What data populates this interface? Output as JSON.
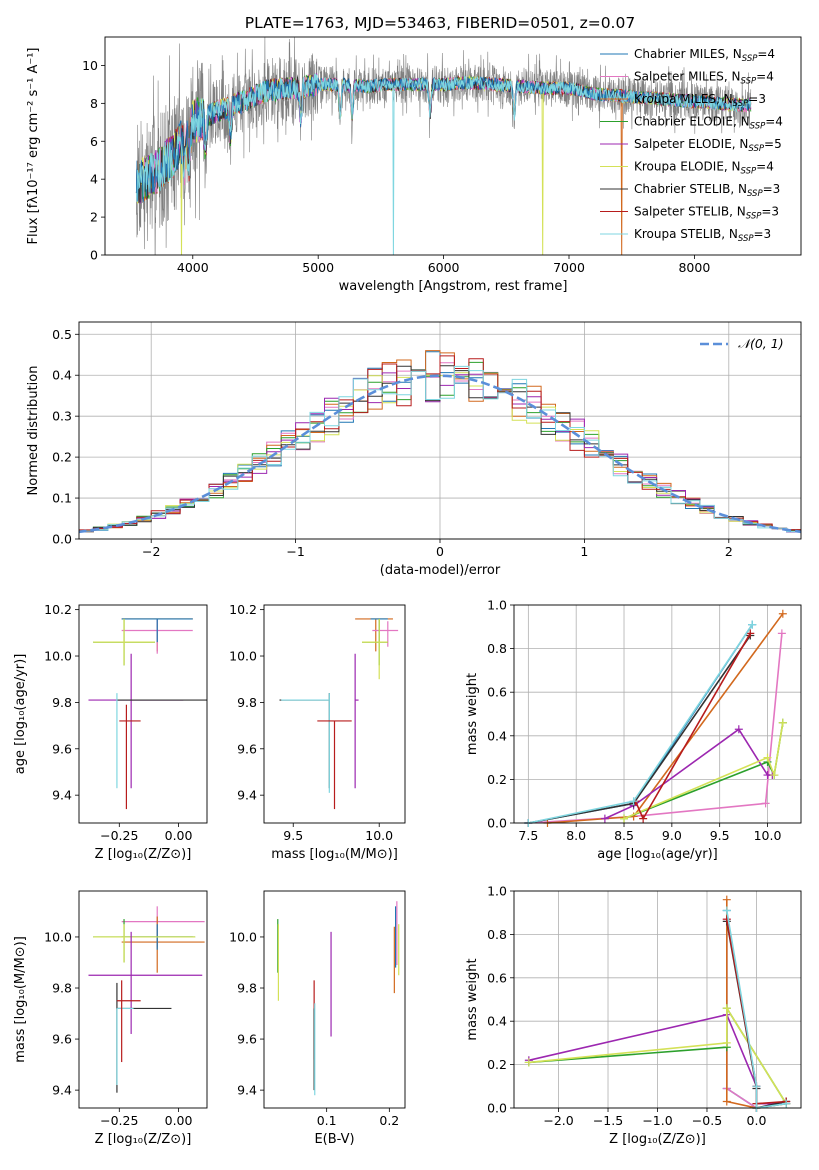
{
  "title": "PLATE=1763, MJD=53463, FIBERID=0501, z=0.07",
  "colors": {
    "Chabrier MILES": "#1f77b4",
    "Salpeter MILES": "#e377c2",
    "Kroupa MILES": "#d2691e",
    "Chabrier ELODIE": "#2ca02c",
    "Salpeter ELODIE": "#9c27b0",
    "Kroupa ELODIE": "#d4e157",
    "Chabrier STELIB": "#333333",
    "Salpeter STELIB": "#b71c1c",
    "Kroupa STELIB": "#7fd6e0",
    "data": "#808080",
    "gaussian": "#5b8fd9"
  },
  "legend_top": [
    "Chabrier MILES, N$_{SSP}$=4",
    "Salpeter MILES, N$_{SSP}$=4",
    "Kroupa MILES, N$_{SSP}$=3",
    "Chabrier ELODIE, N$_{SSP}$=4",
    "Salpeter ELODIE, N$_{SSP}$=5",
    "Kroupa ELODIE, N$_{SSP}$=4",
    "Chabrier STELIB, N$_{SSP}$=3",
    "Salpeter STELIB, N$_{SSP}$=3",
    "Kroupa STELIB, N$_{SSP}$=3"
  ],
  "legend_top_parts": [
    [
      "Chabrier MILES, N",
      "SSP",
      "=4"
    ],
    [
      "Salpeter MILES, N",
      "SSP",
      "=4"
    ],
    [
      "Kroupa MILES, N",
      "SSP",
      "=3"
    ],
    [
      "Chabrier ELODIE, N",
      "SSP",
      "=4"
    ],
    [
      "Salpeter ELODIE, N",
      "SSP",
      "=5"
    ],
    [
      "Kroupa ELODIE, N",
      "SSP",
      "=4"
    ],
    [
      "Chabrier STELIB, N",
      "SSP",
      "=3"
    ],
    [
      "Salpeter STELIB, N",
      "SSP",
      "=3"
    ],
    [
      "Kroupa STELIB, N",
      "SSP",
      "=3"
    ]
  ],
  "chart_data": [
    {
      "id": "spectrum",
      "type": "line",
      "xlabel": "wavelength [Angstrom, rest frame]",
      "ylabel": "Flux [fλ10⁻¹⁷ erg cm⁻² s⁻¹ A⁻¹]",
      "xlim": [
        3300,
        8850
      ],
      "ylim": [
        0,
        11.5
      ],
      "xticks": [
        4000,
        5000,
        6000,
        7000,
        8000
      ],
      "yticks": [
        0,
        2,
        4,
        6,
        8,
        10
      ],
      "continuum": {
        "x": [
          3550,
          3700,
          3850,
          4000,
          4200,
          4400,
          4600,
          4800,
          5000,
          5200,
          5400,
          5600,
          5800,
          6000,
          6200,
          6400,
          6600,
          6800,
          7000,
          7200,
          7400,
          7600,
          7800,
          8000,
          8200,
          8400
        ],
        "y": [
          3.8,
          4.3,
          5.3,
          7.0,
          7.6,
          8.1,
          8.7,
          8.8,
          9.0,
          9.0,
          8.9,
          9.0,
          9.0,
          9.0,
          9.1,
          9.0,
          8.9,
          8.8,
          8.8,
          8.5,
          8.4,
          8.3,
          8.2,
          8.1,
          8.0,
          7.9
        ]
      },
      "absorption_lines": [
        3934,
        3969,
        4102,
        4300,
        4861,
        5175,
        5270,
        5892,
        6563
      ],
      "model_dropouts": [
        {
          "x": 3910,
          "model": "Kroupa ELODIE"
        },
        {
          "x": 5600,
          "model": "Kroupa STELIB"
        },
        {
          "x": 6790,
          "model": "Kroupa ELODIE"
        },
        {
          "x": 7420,
          "model": "Kroupa MILES"
        }
      ],
      "legend_position": "upper right"
    },
    {
      "id": "residuals",
      "type": "step",
      "xlabel": "(data-model)/error",
      "ylabel": "Normed distribution",
      "xlim": [
        -2.5,
        2.5
      ],
      "ylim": [
        0,
        0.53
      ],
      "xticks": [
        -2,
        -1,
        0,
        1,
        2
      ],
      "yticks": [
        0.0,
        0.1,
        0.2,
        0.3,
        0.4,
        0.5
      ],
      "grid": true,
      "bin_width": 0.1,
      "gaussian_label": "𝒩(0, 1)",
      "legend_position": "upper right"
    },
    {
      "id": "age_vs_Z",
      "type": "errorbar",
      "xlabel": "Z [log₁₀(Z/Z⊙)]",
      "ylabel": "age  [log₁₀(age/yr)]",
      "xlim": [
        -0.42,
        0.12
      ],
      "ylim": [
        9.28,
        10.22
      ],
      "xticks": [
        -0.25,
        0.0
      ],
      "yticks": [
        9.4,
        9.6,
        9.8,
        10.0,
        10.2
      ],
      "points": [
        {
          "model": "Kroupa MILES",
          "x": -0.09,
          "y": 10.16,
          "xerr": [
            0.15,
            0.15
          ],
          "yerr": [
            0.14,
            0.0
          ]
        },
        {
          "model": "Salpeter MILES",
          "x": -0.09,
          "y": 10.11,
          "xerr": [
            0.15,
            0.15
          ],
          "yerr": [
            0.1,
            0.05
          ]
        },
        {
          "model": "Chabrier MILES",
          "x": -0.09,
          "y": 10.16,
          "xerr": [
            0.15,
            0.15
          ],
          "yerr": [
            0.1,
            0.0
          ]
        },
        {
          "model": "Chabrier ELODIE",
          "x": -0.23,
          "y": 10.06,
          "xerr": [
            0.13,
            0.13
          ],
          "yerr": [
            0.1,
            0.1
          ]
        },
        {
          "model": "Kroupa ELODIE",
          "x": -0.23,
          "y": 10.06,
          "xerr": [
            0.13,
            0.13
          ],
          "yerr": [
            0.1,
            0.1
          ]
        },
        {
          "model": "Salpeter ELODIE",
          "x": -0.2,
          "y": 9.81,
          "xerr": [
            0.18,
            0.22
          ],
          "yerr": [
            0.38,
            0.2
          ]
        },
        {
          "model": "Chabrier STELIB",
          "x": -0.06,
          "y": 9.81,
          "xerr": [
            0.2,
            0.2
          ],
          "yerr": [
            0.0,
            0.0
          ]
        },
        {
          "model": "Kroupa STELIB",
          "x": -0.26,
          "y": 9.81,
          "xerr": [
            0.0,
            0.0
          ],
          "yerr": [
            0.38,
            0.03
          ]
        },
        {
          "model": "Salpeter STELIB",
          "x": -0.22,
          "y": 9.72,
          "xerr": [
            0.03,
            0.06
          ],
          "yerr": [
            0.38,
            0.07
          ]
        }
      ]
    },
    {
      "id": "age_vs_mass",
      "type": "errorbar",
      "xlabel": "mass [log₁₀(M/M⊙)]",
      "ylabel": "",
      "xlim": [
        9.33,
        10.15
      ],
      "ylim": [
        9.28,
        10.22
      ],
      "xticks": [
        9.5,
        10.0
      ],
      "yticks": [
        9.4,
        9.6,
        9.8,
        10.0,
        10.2
      ],
      "points": [
        {
          "model": "Kroupa MILES",
          "x": 9.98,
          "y": 10.16,
          "xerr": [
            0.12,
            0.1
          ],
          "yerr": [
            0.14,
            0.0
          ]
        },
        {
          "model": "Salpeter MILES",
          "x": 10.05,
          "y": 10.11,
          "xerr": [
            0.09,
            0.06
          ],
          "yerr": [
            0.07,
            0.04
          ]
        },
        {
          "model": "Chabrier MILES",
          "x": 10.0,
          "y": 10.16,
          "xerr": [
            0.05,
            0.05
          ],
          "yerr": [
            0.1,
            0.0
          ]
        },
        {
          "model": "Chabrier ELODIE",
          "x": 10.0,
          "y": 10.06,
          "xerr": [
            0.1,
            0.05
          ],
          "yerr": [
            0.1,
            0.1
          ]
        },
        {
          "model": "Kroupa ELODIE",
          "x": 10.0,
          "y": 10.06,
          "xerr": [
            0.1,
            0.05
          ],
          "yerr": [
            0.16,
            0.1
          ]
        },
        {
          "model": "Salpeter ELODIE",
          "x": 9.86,
          "y": 9.81,
          "xerr": [
            0.0,
            0.02
          ],
          "yerr": [
            0.38,
            0.2
          ]
        },
        {
          "model": "Chabrier STELIB",
          "x": 9.71,
          "y": 9.81,
          "xerr": [
            0.29,
            0.0
          ],
          "yerr": [
            0.38,
            0.03
          ]
        },
        {
          "model": "Kroupa STELIB",
          "x": 9.71,
          "y": 9.81,
          "xerr": [
            0.28,
            0.0
          ],
          "yerr": [
            0.4,
            0.03
          ]
        },
        {
          "model": "Salpeter STELIB",
          "x": 9.74,
          "y": 9.72,
          "xerr": [
            0.1,
            0.1
          ],
          "yerr": [
            0.38,
            0.0
          ]
        }
      ]
    },
    {
      "id": "weight_vs_age",
      "type": "line",
      "xlabel": "age  [log₁₀(age/yr)]",
      "ylabel": "mass weight",
      "xlim": [
        7.35,
        10.35
      ],
      "ylim": [
        0.0,
        1.0
      ],
      "xticks": [
        7.5,
        8.0,
        8.5,
        9.0,
        9.5,
        10.0
      ],
      "yticks": [
        0.0,
        0.2,
        0.4,
        0.6,
        0.8,
        1.0
      ],
      "grid": true,
      "series": [
        {
          "model": "Chabrier MILES",
          "x": [
            7.5,
            8.6,
            9.84
          ],
          "y": [
            0.0,
            0.09,
            0.91
          ]
        },
        {
          "model": "Salpeter MILES",
          "x": [
            7.5,
            8.6,
            9.98,
            10.15
          ],
          "y": [
            0.0,
            0.03,
            0.09,
            0.87
          ]
        },
        {
          "model": "Kroupa MILES",
          "x": [
            7.7,
            8.6,
            10.16
          ],
          "y": [
            0.0,
            0.03,
            0.96
          ]
        },
        {
          "model": "Chabrier ELODIE",
          "x": [
            8.5,
            10.0,
            10.07,
            10.16
          ],
          "y": [
            0.02,
            0.28,
            0.22,
            0.46
          ]
        },
        {
          "model": "Salpeter ELODIE",
          "x": [
            8.3,
            8.6,
            9.7,
            10.0,
            10.05
          ],
          "y": [
            0.02,
            0.08,
            0.43,
            0.22,
            0.22
          ]
        },
        {
          "model": "Kroupa ELODIE",
          "x": [
            8.5,
            10.0,
            10.07,
            10.16
          ],
          "y": [
            0.02,
            0.3,
            0.22,
            0.46
          ]
        },
        {
          "model": "Chabrier STELIB",
          "x": [
            7.5,
            8.6,
            9.82
          ],
          "y": [
            0.0,
            0.09,
            0.86
          ]
        },
        {
          "model": "Salpeter STELIB",
          "x": [
            8.62,
            8.7,
            9.82
          ],
          "y": [
            0.1,
            0.02,
            0.87
          ]
        },
        {
          "model": "Kroupa STELIB",
          "x": [
            7.5,
            8.6,
            9.84
          ],
          "y": [
            0.0,
            0.1,
            0.91
          ]
        }
      ]
    },
    {
      "id": "mass_vs_Z",
      "type": "errorbar",
      "xlabel": "Z [log₁₀(Z/Z⊙)]",
      "ylabel": "mass [log₁₀(M/M⊙)]",
      "xlim": [
        -0.42,
        0.12
      ],
      "ylim": [
        9.33,
        10.18
      ],
      "xticks": [
        -0.25,
        0.0
      ],
      "yticks": [
        9.4,
        9.6,
        9.8,
        10.0
      ],
      "points": [
        {
          "model": "Salpeter MILES",
          "x": -0.09,
          "y": 10.06,
          "xerr": [
            0.15,
            0.2
          ],
          "yerr": [
            0.1,
            0.06
          ]
        },
        {
          "model": "Kroupa MILES",
          "x": -0.09,
          "y": 9.98,
          "xerr": [
            0.15,
            0.2
          ],
          "yerr": [
            0.12,
            0.1
          ]
        },
        {
          "model": "Chabrier MILES",
          "x": -0.09,
          "y": 10.0,
          "xerr": [
            0.15,
            0.15
          ],
          "yerr": [
            0.05,
            0.05
          ]
        },
        {
          "model": "Chabrier ELODIE",
          "x": -0.23,
          "y": 10.0,
          "xerr": [
            0.13,
            0.3
          ],
          "yerr": [
            0.1,
            0.07
          ]
        },
        {
          "model": "Kroupa ELODIE",
          "x": -0.23,
          "y": 10.0,
          "xerr": [
            0.13,
            0.3
          ],
          "yerr": [
            0.1,
            0.05
          ]
        },
        {
          "model": "Salpeter ELODIE",
          "x": -0.2,
          "y": 9.85,
          "xerr": [
            0.18,
            0.3
          ],
          "yerr": [
            0.23,
            0.17
          ]
        },
        {
          "model": "Chabrier STELIB",
          "x": -0.26,
          "y": 9.72,
          "xerr": [
            0.0,
            0.23
          ],
          "yerr": [
            0.33,
            0.1
          ]
        },
        {
          "model": "Kroupa STELIB",
          "x": -0.26,
          "y": 9.72,
          "xerr": [
            0.0,
            0.07
          ],
          "yerr": [
            0.3,
            0.0
          ]
        },
        {
          "model": "Salpeter STELIB",
          "x": -0.24,
          "y": 9.75,
          "xerr": [
            0.02,
            0.08
          ],
          "yerr": [
            0.24,
            0.08
          ]
        }
      ]
    },
    {
      "id": "mass_vs_EBV",
      "type": "errorbar",
      "xlabel": "E(B-V)",
      "ylabel": "",
      "xlim": [
        0.0,
        0.225
      ],
      "ylim": [
        9.33,
        10.18
      ],
      "xticks": [
        0.1,
        0.2
      ],
      "yticks": [
        9.4,
        9.6,
        9.8,
        10.0
      ],
      "points": [
        {
          "model": "Chabrier ELODIE",
          "x": 0.022,
          "y": 10.0,
          "yerr": [
            0.14,
            0.07
          ]
        },
        {
          "model": "Kroupa ELODIE",
          "x": 0.023,
          "y": 9.95,
          "yerr": [
            0.2,
            0.1
          ]
        },
        {
          "model": "Salpeter STELIB",
          "x": 0.08,
          "y": 9.75,
          "yerr": [
            0.23,
            0.08
          ]
        },
        {
          "model": "Chabrier STELIB",
          "x": 0.08,
          "y": 9.62,
          "yerr": [
            0.22,
            0.1
          ]
        },
        {
          "model": "Kroupa STELIB",
          "x": 0.081,
          "y": 9.6,
          "yerr": [
            0.22,
            0.14
          ]
        },
        {
          "model": "Salpeter ELODIE",
          "x": 0.107,
          "y": 9.81,
          "yerr": [
            0.2,
            0.21
          ]
        },
        {
          "model": "Kroupa MILES",
          "x": 0.208,
          "y": 9.98,
          "yerr": [
            0.2,
            0.06
          ]
        },
        {
          "model": "Chabrier MILES",
          "x": 0.21,
          "y": 10.0,
          "yerr": [
            0.12,
            0.12
          ]
        },
        {
          "model": "Salpeter MILES",
          "x": 0.212,
          "y": 10.05,
          "yerr": [
            0.16,
            0.09
          ]
        },
        {
          "model": "Kroupa ELODIE",
          "x": 0.215,
          "y": 9.95,
          "yerr": [
            0.1,
            0.1
          ]
        }
      ]
    },
    {
      "id": "weight_vs_Z",
      "type": "line",
      "xlabel": "Z [log₁₀(Z/Z⊙)]",
      "ylabel": "mass weight",
      "xlim": [
        -2.45,
        0.45
      ],
      "ylim": [
        0.0,
        1.0
      ],
      "xticks": [
        -2.0,
        -1.5,
        -1.0,
        -0.5,
        0.0
      ],
      "yticks": [
        0.0,
        0.2,
        0.4,
        0.6,
        0.8,
        1.0
      ],
      "grid": true,
      "series": [
        {
          "model": "Chabrier MILES",
          "x": [
            -0.3,
            -0.3,
            0.0,
            0.3
          ],
          "y": [
            0.91,
            0.09,
            0.0,
            0.02
          ]
        },
        {
          "model": "Salpeter MILES",
          "x": [
            -0.3,
            -0.3,
            0.0,
            0.3
          ],
          "y": [
            0.87,
            0.09,
            0.0,
            0.03
          ]
        },
        {
          "model": "Kroupa MILES",
          "x": [
            -0.3,
            -0.3,
            0.0,
            0.3
          ],
          "y": [
            0.96,
            0.03,
            0.0,
            0.02
          ]
        },
        {
          "model": "Chabrier ELODIE",
          "x": [
            -2.3,
            -0.3,
            -0.3,
            0.3
          ],
          "y": [
            0.21,
            0.28,
            0.46,
            0.02
          ]
        },
        {
          "model": "Salpeter ELODIE",
          "x": [
            -2.3,
            -0.3,
            0.0,
            0.0,
            0.3
          ],
          "y": [
            0.22,
            0.43,
            0.1,
            0.02,
            0.02
          ]
        },
        {
          "model": "Kroupa ELODIE",
          "x": [
            -2.3,
            -0.3,
            -0.3,
            0.3
          ],
          "y": [
            0.21,
            0.3,
            0.46,
            0.02
          ]
        },
        {
          "model": "Chabrier STELIB",
          "x": [
            -0.3,
            0.0,
            0.0,
            0.3
          ],
          "y": [
            0.86,
            0.09,
            0.0,
            0.03
          ]
        },
        {
          "model": "Salpeter STELIB",
          "x": [
            -0.3,
            0.0,
            0.0,
            0.3
          ],
          "y": [
            0.87,
            0.1,
            0.02,
            0.03
          ]
        },
        {
          "model": "Kroupa STELIB",
          "x": [
            -0.3,
            0.0,
            0.0,
            0.3
          ],
          "y": [
            0.91,
            0.1,
            0.0,
            0.02
          ]
        }
      ]
    }
  ]
}
